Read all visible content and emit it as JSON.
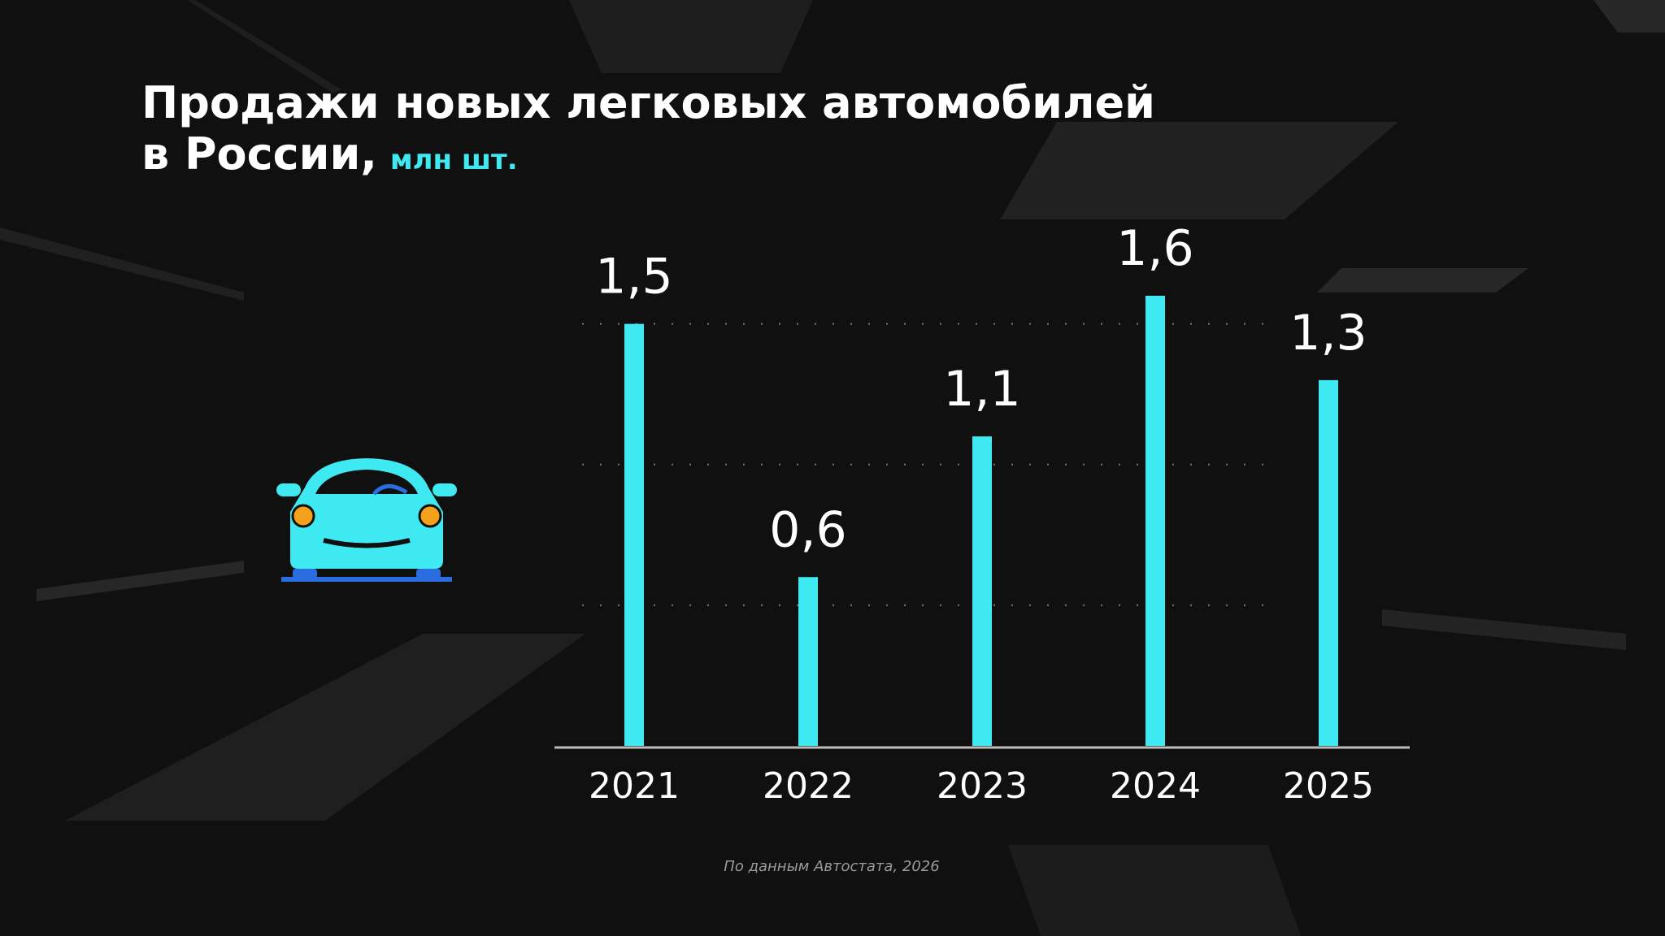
{
  "chart_data": {
    "type": "bar",
    "title": [
      "Продажи новых легковых автомобилей",
      "в России,"
    ],
    "subtitle": "млн шт.",
    "categories": [
      "2021",
      "2022",
      "2023",
      "2024",
      "2025"
    ],
    "values": [
      1.5,
      0.6,
      1.1,
      1.6,
      1.3
    ],
    "value_labels": [
      "1,5",
      "0,6",
      "1,1",
      "1,6",
      "1,3"
    ],
    "color": "#3ee9f2",
    "ylim": [
      0,
      1.6
    ],
    "yticks": [
      0.5,
      1,
      1.5
    ],
    "grid": true,
    "source": "По данным Автостата, 2026"
  }
}
